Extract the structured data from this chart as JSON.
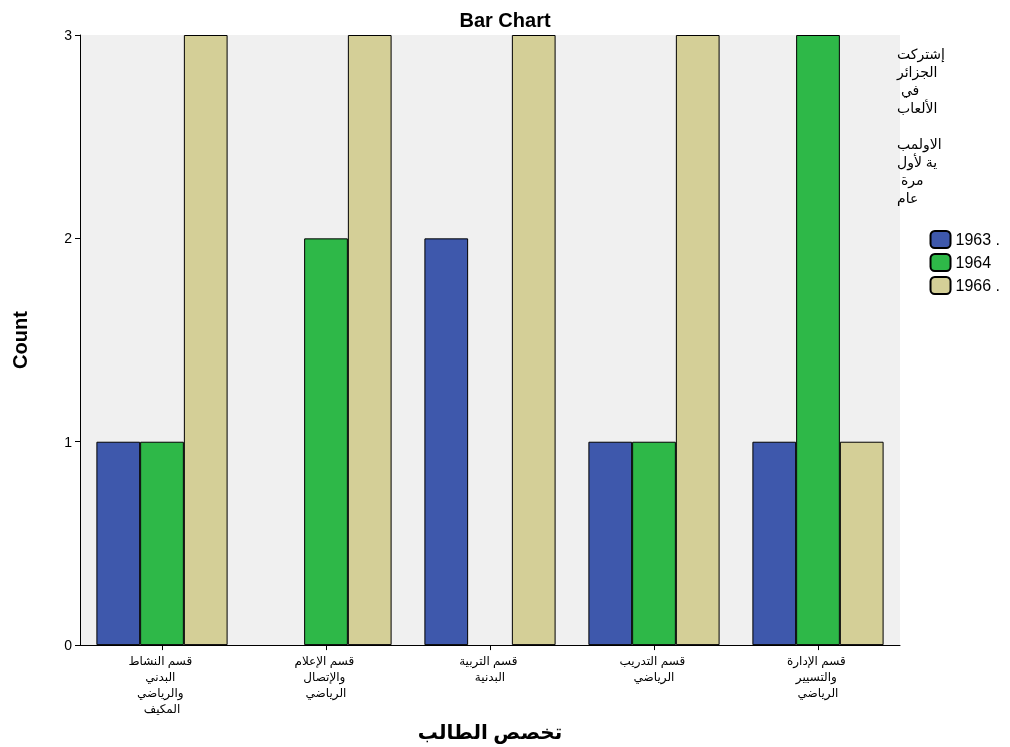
{
  "chart_data": {
    "type": "bar",
    "title": "Bar Chart",
    "xlabel": "تخصص الطالب",
    "ylabel": "Count",
    "legend_title": "إشتركت الجزائر في الألعاب الاولمبية لأول مرة عام",
    "categories": [
      "قسم النشاط البدني والرياضي المكيف",
      "قسم الإعلام والإتصال الرياضي",
      "قسم التربية البدنية",
      "قسم التدريب الرياضي",
      "قسم الإدارة والتسيير الرياضي"
    ],
    "series": [
      {
        "name": "1963 .",
        "color": "#3e58ac",
        "values": [
          1,
          null,
          2,
          1,
          1
        ]
      },
      {
        "name": "1964",
        "color": "#2eb848",
        "values": [
          1,
          2,
          null,
          1,
          3
        ]
      },
      {
        "name": "1966 .",
        "color": "#d4cf97",
        "values": [
          3,
          3,
          3,
          3,
          1
        ]
      }
    ],
    "ylim": [
      0,
      3
    ],
    "yticks": [
      0,
      1,
      2,
      3
    ],
    "grid": false,
    "legend": "right"
  }
}
